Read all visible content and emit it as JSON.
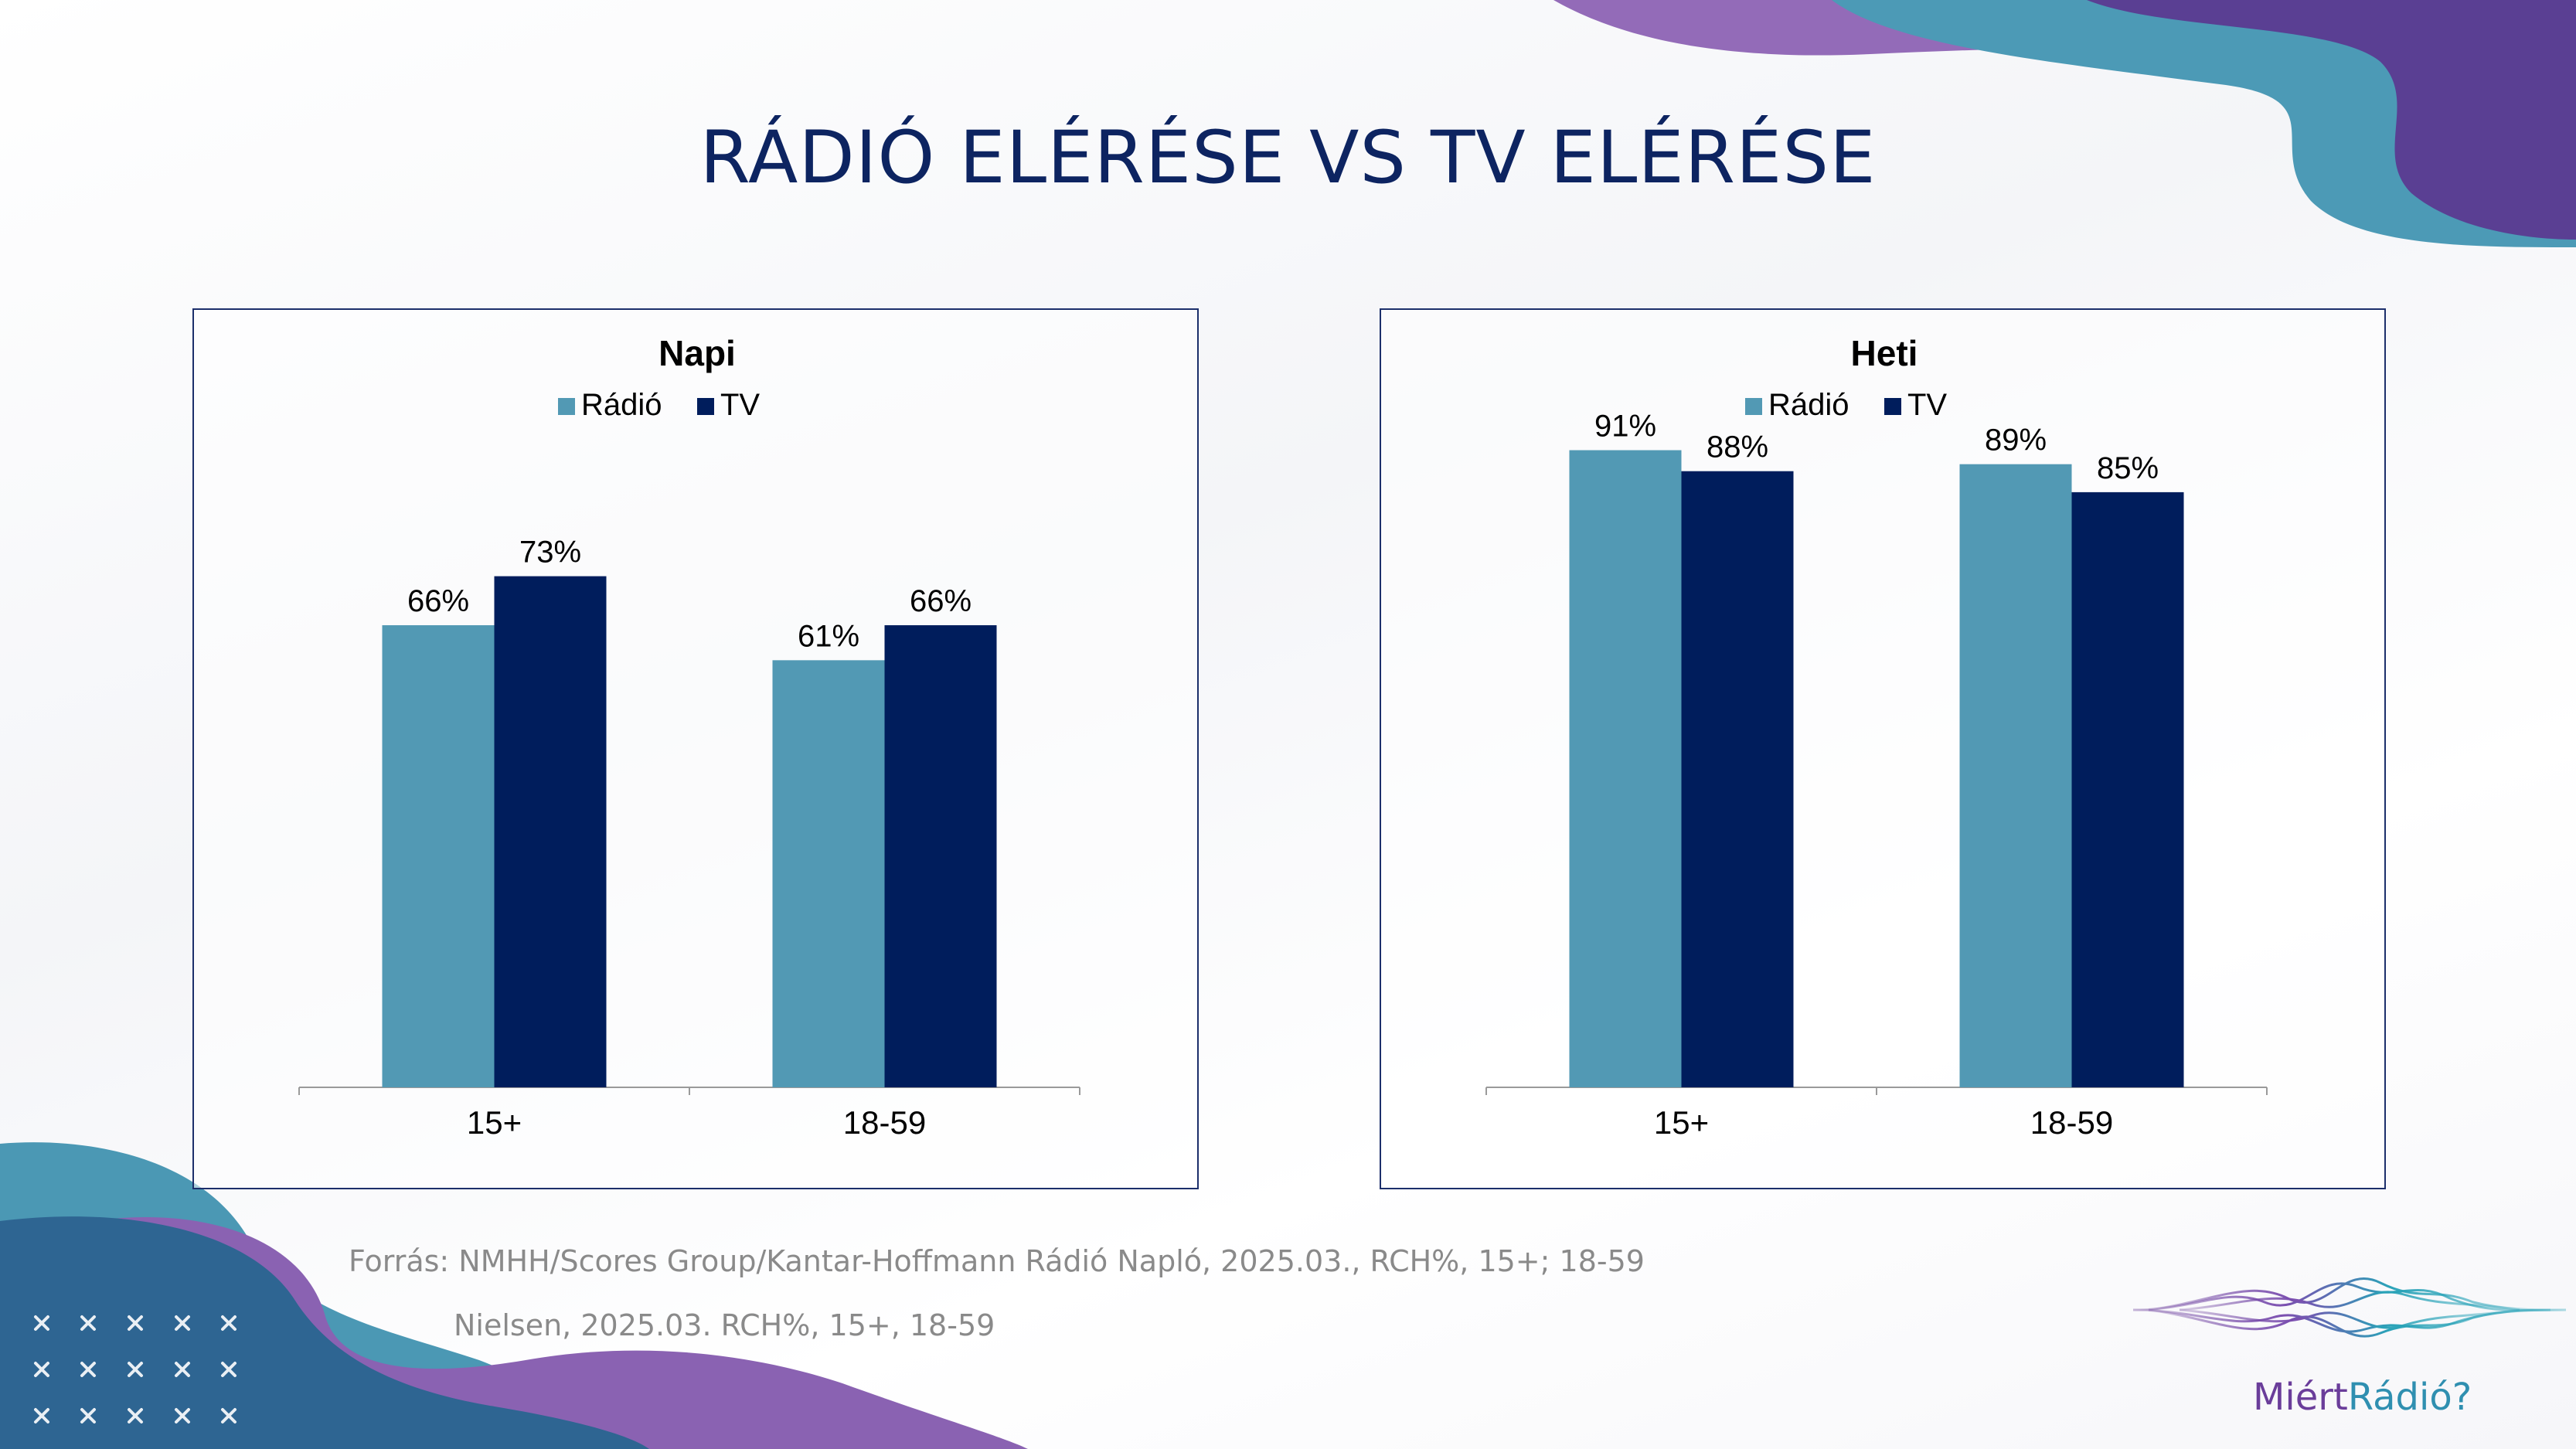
{
  "title": "RÁDIÓ ELÉRÉSE VS TV ELÉRÉSE",
  "colors": {
    "radio": "#5299b4",
    "tv": "#001d5c",
    "title": "#0d2461",
    "source_text": "#8a8a8a",
    "deco_purple": "#7b52a8",
    "deco_teal": "#3f8fb0"
  },
  "chart_data": [
    {
      "type": "bar",
      "title": "Napi",
      "categories": [
        "15+",
        "18-59"
      ],
      "series": [
        {
          "name": "Rádió",
          "values": [
            66,
            61
          ],
          "labels": [
            "66%",
            "61%"
          ]
        },
        {
          "name": "TV",
          "values": [
            73,
            66
          ],
          "labels": [
            "73%",
            "66%"
          ]
        }
      ],
      "ylim": [
        0,
        100
      ],
      "legend": "top-center",
      "grid": false
    },
    {
      "type": "bar",
      "title": "Heti",
      "categories": [
        "15+",
        "18-59"
      ],
      "series": [
        {
          "name": "Rádió",
          "values": [
            91,
            89
          ],
          "labels": [
            "91%",
            "89%"
          ]
        },
        {
          "name": "TV",
          "values": [
            88,
            85
          ],
          "labels": [
            "88%",
            "85%"
          ]
        }
      ],
      "ylim": [
        0,
        100
      ],
      "legend": "top-center",
      "grid": false
    }
  ],
  "source": {
    "line1": "Forrás: NMHH/Scores Group/Kantar-Hoffmann Rádió Napló, 2025.03., RCH%, 15+; 18-59",
    "line2": "Nielsen, 2025.03. RCH%, 15+, 18-59"
  },
  "logo": {
    "part1": "Miért",
    "part2": "Rádió?"
  },
  "decor_icon": "x-mark-grid-icon"
}
